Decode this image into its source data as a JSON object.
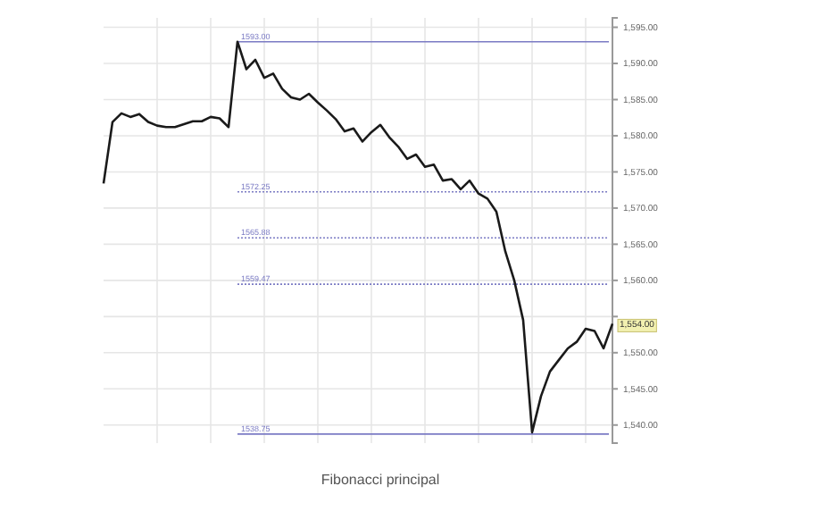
{
  "chart_data": {
    "type": "line",
    "title": "Fibonacci principal",
    "categories": [
      null,
      null,
      null,
      null,
      null,
      null,
      null,
      null,
      null,
      null,
      null,
      null,
      null,
      null,
      null,
      null,
      null,
      null,
      null,
      null,
      null,
      null,
      null,
      null,
      null,
      null,
      null,
      null,
      null,
      null,
      null,
      null,
      null,
      null,
      null,
      null,
      null,
      null,
      null,
      null,
      null,
      null,
      null,
      null,
      null,
      null,
      null,
      null,
      null,
      null,
      null,
      null,
      null,
      null,
      null,
      null,
      null,
      null
    ],
    "series": [
      {
        "color": "#1a1a1a",
        "values": [
          1573.4,
          1581.9,
          1583.1,
          1582.6,
          1583,
          1581.9,
          1581.4,
          1581.2,
          1581.2,
          1581.6,
          1582,
          1582,
          1582.6,
          1582.4,
          1581.2,
          1593,
          1589.2,
          1590.5,
          1588,
          1588.6,
          1586.5,
          1585.3,
          1585,
          1585.8,
          1584.6,
          1583.5,
          1582.3,
          1580.6,
          1581,
          1579.2,
          1580.5,
          1581.5,
          1579.8,
          1578.5,
          1576.8,
          1577.4,
          1575.7,
          1576,
          1573.8,
          1574,
          1572.6,
          1573.8,
          1572,
          1571.3,
          1569.5,
          1564,
          1560,
          1554.5,
          1539,
          1544,
          1547.4,
          1549,
          1550.6,
          1551.5,
          1553.3,
          1553,
          1550.6,
          1554
        ]
      }
    ],
    "ylim": [
      1537.5,
      1596.3
    ],
    "yticks": [
      {
        "value": 1540,
        "label": "1,540.00"
      },
      {
        "value": 1545,
        "label": "1,545.00"
      },
      {
        "value": 1550,
        "label": "1,550.00"
      },
      {
        "value": 1555,
        "label": null
      },
      {
        "value": 1560,
        "label": "1,560.00"
      },
      {
        "value": 1565,
        "label": "1,565.00"
      },
      {
        "value": 1570,
        "label": "1,570.00"
      },
      {
        "value": 1575,
        "label": "1,575.00"
      },
      {
        "value": 1580,
        "label": "1,580.00"
      },
      {
        "value": 1585,
        "label": "1,585.00"
      },
      {
        "value": 1590,
        "label": "1,590.00"
      },
      {
        "value": 1595,
        "label": "1,595.00"
      }
    ],
    "ref_lines": [
      {
        "axis": "y",
        "value": 1593,
        "label": "1593.00",
        "color": "#7b7bc4",
        "line_style": "solid"
      },
      {
        "axis": "y",
        "value": 1572.25,
        "label": "1572.25",
        "color": "#7b7bc4",
        "line_style": "dotted"
      },
      {
        "axis": "y",
        "value": 1565.88,
        "label": "1565.88",
        "color": "#7b7bc4",
        "line_style": "dotted"
      },
      {
        "axis": "y",
        "value": 1559.47,
        "label": "1559.47",
        "color": "#7b7bc4",
        "line_style": "dotted"
      },
      {
        "axis": "y",
        "value": 1538.75,
        "label": "1538.75",
        "color": "#7b7bc4",
        "line_style": "solid"
      }
    ],
    "annotations": [
      {
        "text": "1,554.00",
        "y": 1554
      }
    ],
    "grid": true,
    "tick_labels": "y",
    "line_style": "solid",
    "marker": "none"
  }
}
